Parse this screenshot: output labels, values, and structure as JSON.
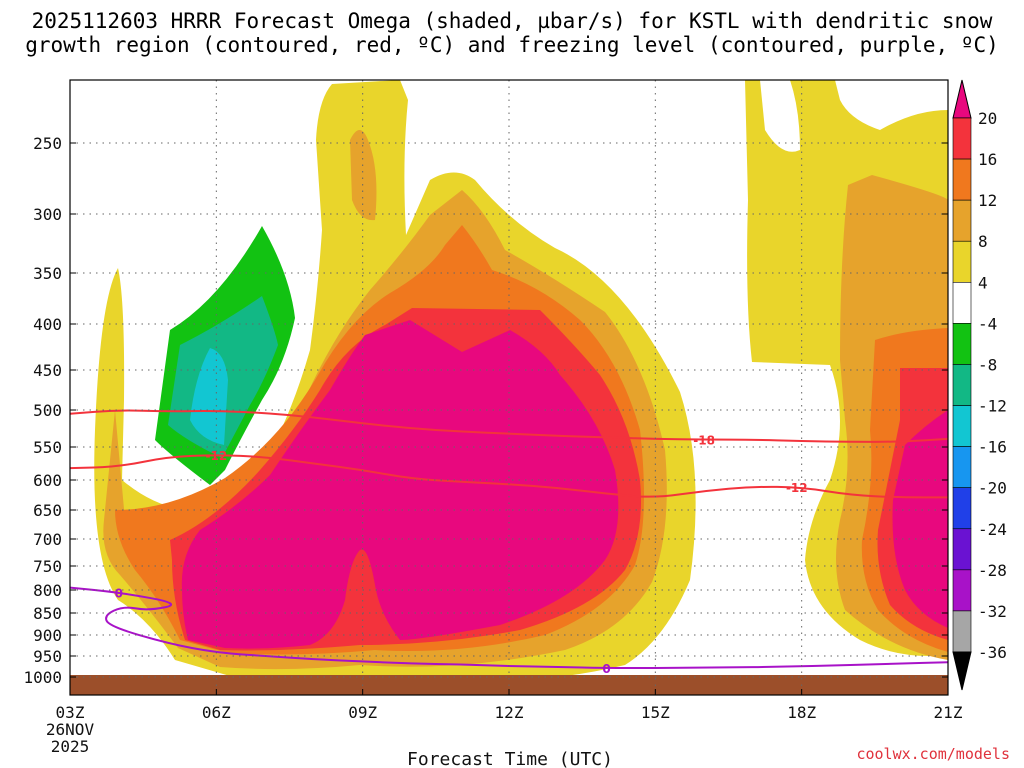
{
  "header": {
    "title_line1": "2025112603 HRRR Forecast Omega (shaded, µbar/s) for KSTL with dendritic snow",
    "title_line2": "growth region (contoured, red, ºC) and freezing level (contoured, purple, ºC)"
  },
  "footer": {
    "credit": "coolwx.com/models"
  },
  "chart_data": {
    "type": "time-height cross section (filled contour)",
    "title": "2025112603 HRRR Forecast Omega (shaded, µbar/s) for KSTL with dendritic snow growth region (contoured, red, ºC) and freezing level (contoured, purple, ºC)",
    "xlabel": "Forecast Time (UTC)",
    "ylabel": "",
    "x_ticks": [
      "03Z",
      "06Z",
      "09Z",
      "12Z",
      "15Z",
      "18Z",
      "21Z"
    ],
    "x_hours": [
      3,
      6,
      9,
      12,
      15,
      18,
      21
    ],
    "x_first_date": [
      "26NOV",
      "2025"
    ],
    "xlim": [
      3,
      21
    ],
    "y_ticks": [
      250,
      300,
      350,
      400,
      450,
      500,
      550,
      600,
      650,
      700,
      750,
      800,
      850,
      900,
      950,
      1000
    ],
    "ylim_hPa": [
      200,
      1000
    ],
    "colorbar": {
      "labels": [
        "20",
        "16",
        "12",
        "8",
        "4",
        "-4",
        "-8",
        "-12",
        "-16",
        "-20",
        "-24",
        "-28",
        "-32",
        "-36"
      ],
      "bins": [
        {
          "range": ">20",
          "color": "#e8087e"
        },
        {
          "range": "16 to 20",
          "color": "#f3333c"
        },
        {
          "range": "12 to 16",
          "color": "#f0781e"
        },
        {
          "range": "8 to 12",
          "color": "#e6a32c"
        },
        {
          "range": "4 to 8",
          "color": "#e9d52b"
        },
        {
          "range": "-4 to 4",
          "color": "#ffffff"
        },
        {
          "range": "-8 to -4",
          "color": "#12c212"
        },
        {
          "range": "-12 to -8",
          "color": "#12b885"
        },
        {
          "range": "-16 to -12",
          "color": "#12c6d2"
        },
        {
          "range": "-20 to -16",
          "color": "#1796f0"
        },
        {
          "range": "-24 to -20",
          "color": "#2040e8"
        },
        {
          "range": "-28 to -24",
          "color": "#6a12d2"
        },
        {
          "range": "-32 to -28",
          "color": "#a812c8"
        },
        {
          "range": "-36 to -32",
          "color": "#a6a6a6"
        },
        {
          "range": "<-36",
          "color": "#000000"
        }
      ]
    },
    "omega_cores": [
      {
        "hour_range": [
          5.2,
          14.8
        ],
        "p_range": [
          400,
          945
        ],
        "max_bin": ">20",
        "note": "main upward-motion max"
      },
      {
        "hour_range": [
          19.5,
          21
        ],
        "p_range": [
          480,
          930
        ],
        "max_bin": ">20",
        "note": "second max at end"
      },
      {
        "hour_range": [
          4.8,
          7.5
        ],
        "p_range": [
          320,
          580
        ],
        "min_bin": "-16 to -12",
        "note": "negative (subsidence) pocket"
      }
    ],
    "contours": [
      {
        "name": "dendritic -12",
        "color": "#f3333c",
        "label": "-12",
        "points": [
          [
            3,
            582
          ],
          [
            4,
            580
          ],
          [
            5,
            565
          ],
          [
            6,
            562
          ],
          [
            7,
            565
          ],
          [
            8,
            575
          ],
          [
            9,
            585
          ],
          [
            10,
            598
          ],
          [
            11,
            603
          ],
          [
            12,
            607
          ],
          [
            13,
            613
          ],
          [
            14,
            623
          ],
          [
            15,
            630
          ],
          [
            16,
            618
          ],
          [
            17,
            611
          ],
          [
            18,
            612
          ],
          [
            19,
            625
          ],
          [
            20,
            629
          ],
          [
            21,
            629
          ]
        ]
      },
      {
        "name": "dendritic -18",
        "color": "#f3333c",
        "label": "-18",
        "points": [
          [
            3,
            505
          ],
          [
            4,
            500
          ],
          [
            5,
            502
          ],
          [
            6,
            501
          ],
          [
            7,
            504
          ],
          [
            8,
            510
          ],
          [
            9,
            518
          ],
          [
            10,
            525
          ],
          [
            11,
            529
          ],
          [
            12,
            532
          ],
          [
            13,
            535
          ],
          [
            14,
            537
          ],
          [
            15,
            539
          ],
          [
            16,
            540
          ],
          [
            17,
            540
          ],
          [
            18,
            542
          ],
          [
            19,
            543
          ],
          [
            20,
            543
          ],
          [
            21,
            539
          ]
        ]
      },
      {
        "name": "freezing level 0",
        "color": "#a812c8",
        "label": "0",
        "points": [
          [
            3,
            795
          ],
          [
            4,
            805
          ],
          [
            5.3,
            830
          ],
          [
            4.6,
            845
          ],
          [
            4.1,
            835
          ],
          [
            3.7,
            855
          ],
          [
            3.8,
            880
          ],
          [
            5,
            920
          ],
          [
            6,
            942
          ],
          [
            7,
            950
          ],
          [
            8,
            958
          ],
          [
            9,
            963
          ],
          [
            10,
            968
          ],
          [
            11,
            970
          ],
          [
            12,
            974
          ],
          [
            13,
            976
          ],
          [
            14,
            979
          ],
          [
            16,
            978
          ],
          [
            18,
            975
          ],
          [
            20,
            968
          ],
          [
            21,
            965
          ]
        ]
      }
    ]
  }
}
